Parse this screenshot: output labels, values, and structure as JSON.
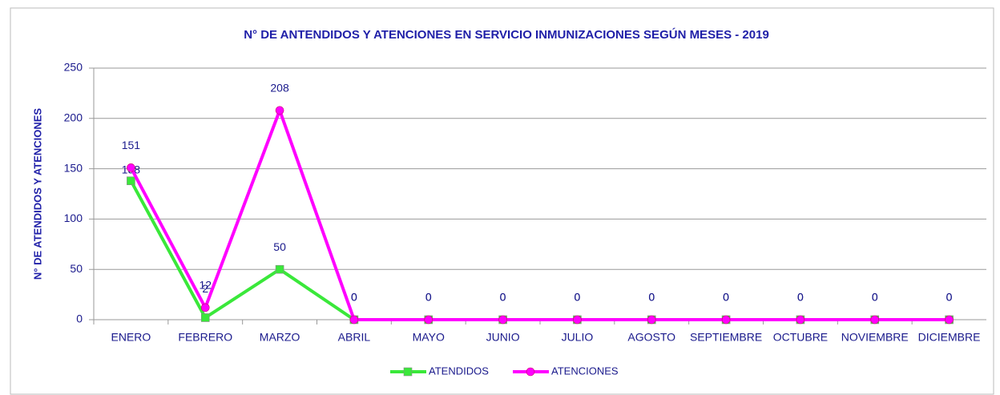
{
  "chart_data": {
    "type": "line",
    "title": "N° DE ANTENDIDOS Y ATENCIONES EN SERVICIO INMUNIZACIONES SEGÚN MESES - 2019",
    "y_label": "N° DE ATENDIDOS Y ATENCIONES",
    "categories": [
      "ENERO",
      "FEBRERO",
      "MARZO",
      "ABRIL",
      "MAYO",
      "JUNIO",
      "JULIO",
      "AGOSTO",
      "SEPTIEMBRE",
      "OCTUBRE",
      "NOVIEMBRE",
      "DICIEMBRE"
    ],
    "series": [
      {
        "name": "ATENDIDOS",
        "color": "#3ae83a",
        "values": [
          138,
          2,
          50,
          0,
          0,
          0,
          0,
          0,
          0,
          0,
          0,
          0
        ]
      },
      {
        "name": "ATENCIONES",
        "color": "#ff00ff",
        "values": [
          151,
          12,
          208,
          0,
          0,
          0,
          0,
          0,
          0,
          0,
          0,
          0
        ]
      }
    ],
    "ylim": [
      0,
      250
    ],
    "yticks": [
      0,
      50,
      100,
      150,
      200,
      250
    ],
    "grid": true,
    "legend": "bottom"
  }
}
